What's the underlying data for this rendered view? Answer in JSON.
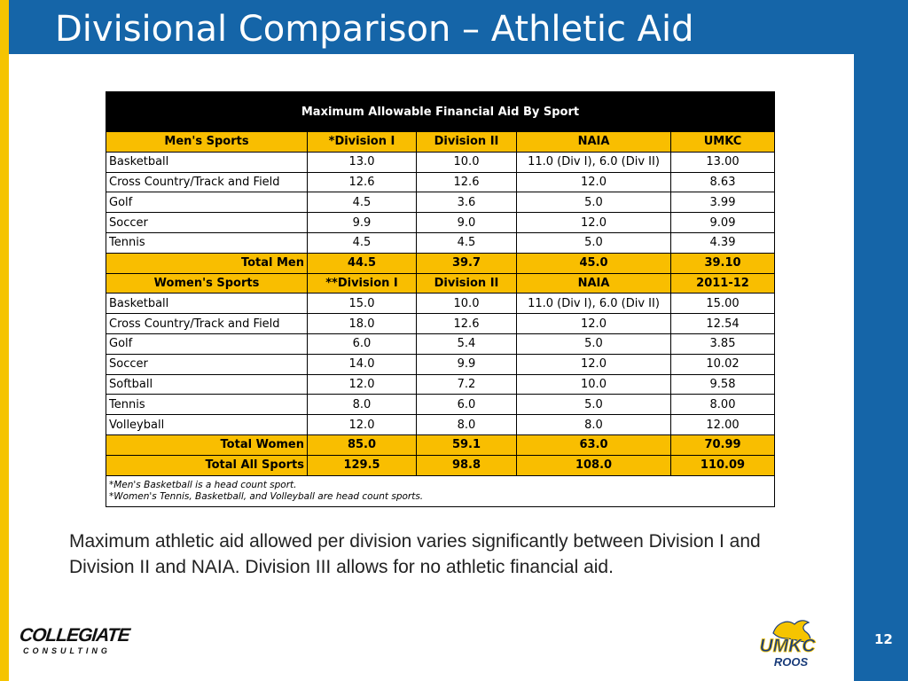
{
  "slide": {
    "title": "Divisional Comparison – Athletic Aid",
    "page_number": "12",
    "summary": "Maximum athletic aid allowed per division varies significantly between Division I and Division II and NAIA.  Division III allows for no athletic financial aid."
  },
  "table": {
    "caption": "Maximum Allowable Financial Aid By Sport",
    "men": {
      "headers": [
        "Men's Sports",
        "*Division I",
        "Division II",
        "NAIA",
        "UMKC"
      ],
      "rows": [
        [
          "Basketball",
          "13.0",
          "10.0",
          "11.0 (Div I), 6.0 (Div II)",
          "13.00"
        ],
        [
          "Cross Country/Track and Field",
          "12.6",
          "12.6",
          "12.0",
          "8.63"
        ],
        [
          "Golf",
          "4.5",
          "3.6",
          "5.0",
          "3.99"
        ],
        [
          "Soccer",
          "9.9",
          "9.0",
          "12.0",
          "9.09"
        ],
        [
          "Tennis",
          "4.5",
          "4.5",
          "5.0",
          "4.39"
        ]
      ],
      "total": [
        "Total Men",
        "44.5",
        "39.7",
        "45.0",
        "39.10"
      ]
    },
    "women": {
      "headers": [
        "Women's Sports",
        "**Division I",
        "Division II",
        "NAIA",
        "2011-12"
      ],
      "rows": [
        [
          "Basketball",
          "15.0",
          "10.0",
          "11.0 (Div I), 6.0 (Div II)",
          "15.00"
        ],
        [
          "Cross Country/Track and Field",
          "18.0",
          "12.6",
          "12.0",
          "12.54"
        ],
        [
          "Golf",
          "6.0",
          "5.4",
          "5.0",
          "3.85"
        ],
        [
          "Soccer",
          "14.0",
          "9.9",
          "12.0",
          "10.02"
        ],
        [
          "Softball",
          "12.0",
          "7.2",
          "10.0",
          "9.58"
        ],
        [
          "Tennis",
          "8.0",
          "6.0",
          "5.0",
          "8.00"
        ],
        [
          "Volleyball",
          "12.0",
          "8.0",
          "8.0",
          "12.00"
        ]
      ],
      "total": [
        "Total Women",
        "85.0",
        "59.1",
        "63.0",
        "70.99"
      ]
    },
    "grand_total": [
      "Total All Sports",
      "129.5",
      "98.8",
      "108.0",
      "110.09"
    ],
    "notes": [
      "*Men's Basketball is a head count sport.",
      "*Women's Tennis, Basketball, and Volleyball are head count sports."
    ]
  },
  "logos": {
    "left": {
      "main": "COLLEGIATE",
      "sub": "CONSULTING"
    },
    "right": {
      "main": "UMKC",
      "sub": "ROOS"
    }
  },
  "colors": {
    "band_blue": "#1565a8",
    "accent_yellow": "#f5c400",
    "table_header_yellow": "#f9be00"
  }
}
